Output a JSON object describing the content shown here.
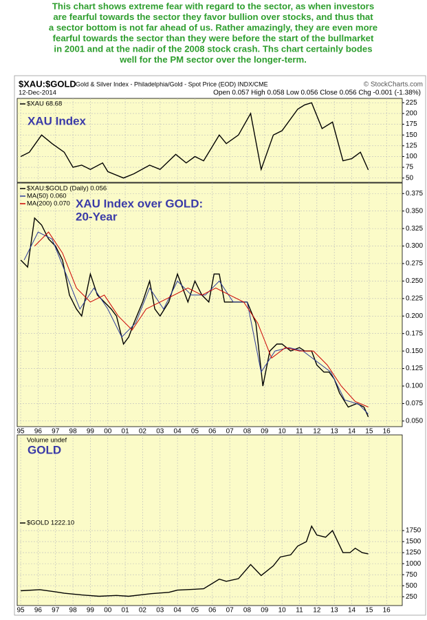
{
  "header": {
    "lines": [
      "This chart shows extreme fear with regard to the sector, as when investors",
      "are fearful towards the sector they favor bullion over stocks, and thus that",
      "a sector bottom is not far ahead of us. Rather amazingly, they are even more",
      "fearful towards the sector than they were before the start of the bullmarket",
      "in 2001 and at the nadir of the 2008 stock crash. Ths chart certainly bodes",
      "well for the PM sector over the longer-term."
    ]
  },
  "chart_header": {
    "symbol": "$XAU:$GOLD",
    "description": "Gold & Silver Index - Philadelphia/Gold - Spot Price (EOD) INDX/CME",
    "source": "© StockCharts.com",
    "date": "12-Dec-2014",
    "quote": "Open 0.057  High 0.058  Low 0.056  Close 0.056  Chg -0.001 (-1.38%)"
  },
  "x_axis": {
    "xlim": [
      1994.8,
      2016.9
    ],
    "xticks": [
      {
        "value": 1995,
        "label": "95"
      },
      {
        "value": 1996,
        "label": "96"
      },
      {
        "value": 1997,
        "label": "97"
      },
      {
        "value": 1998,
        "label": "98"
      },
      {
        "value": 1999,
        "label": "99"
      },
      {
        "value": 2000,
        "label": "00"
      },
      {
        "value": 2001,
        "label": "01"
      },
      {
        "value": 2002,
        "label": "02"
      },
      {
        "value": 2003,
        "label": "03"
      },
      {
        "value": 2004,
        "label": "04"
      },
      {
        "value": 2005,
        "label": "05"
      },
      {
        "value": 2006,
        "label": "06"
      },
      {
        "value": 2007,
        "label": "07"
      },
      {
        "value": 2008,
        "label": "08"
      },
      {
        "value": 2009,
        "label": "09"
      },
      {
        "value": 2010,
        "label": "10"
      },
      {
        "value": 2011,
        "label": "11"
      },
      {
        "value": 2012,
        "label": "12"
      },
      {
        "value": 2013,
        "label": "13"
      },
      {
        "value": 2014,
        "label": "14"
      },
      {
        "value": 2015,
        "label": "15"
      },
      {
        "value": 2016,
        "label": "16"
      }
    ]
  },
  "chart_data": [
    {
      "type": "line",
      "annotation": [
        "XAU Index"
      ],
      "grid": true,
      "ylim": [
        40,
        235
      ],
      "yticks": [
        50,
        75,
        100,
        125,
        150,
        175,
        200,
        225
      ],
      "series": [
        {
          "name": "$XAU 68.68",
          "color": "#000000",
          "x": [
            1995,
            1995.5,
            1996.2,
            1996.8,
            1997.5,
            1998.0,
            1998.5,
            1999.0,
            1999.7,
            2000.0,
            2000.9,
            2001.5,
            2002.4,
            2003.0,
            2003.9,
            2004.5,
            2005.0,
            2005.5,
            2006.4,
            2006.8,
            2007.5,
            2008.2,
            2008.8,
            2009.5,
            2010.0,
            2010.9,
            2011.3,
            2011.7,
            2012.3,
            2012.9,
            2013.5,
            2014.0,
            2014.5,
            2014.95
          ],
          "values": [
            100,
            110,
            150,
            130,
            110,
            75,
            80,
            70,
            85,
            65,
            50,
            60,
            80,
            70,
            105,
            85,
            100,
            90,
            150,
            130,
            150,
            200,
            70,
            150,
            160,
            210,
            220,
            225,
            165,
            180,
            90,
            95,
            110,
            69
          ]
        }
      ]
    },
    {
      "type": "line",
      "annotation": [
        "XAU Index over GOLD:",
        "20-Year"
      ],
      "grid": true,
      "ylim": [
        0.042,
        0.39
      ],
      "yticks": [
        {
          "value": 0.05,
          "label": "0.050"
        },
        0.075,
        {
          "value": 0.1,
          "label": "0.100"
        },
        0.125,
        {
          "value": 0.15,
          "label": "0.150"
        },
        0.175,
        {
          "value": 0.2,
          "label": "0.200"
        },
        0.225,
        {
          "value": 0.25,
          "label": "0.250"
        },
        0.275,
        {
          "value": 0.3,
          "label": "0.300"
        },
        0.325,
        {
          "value": 0.35,
          "label": "0.350"
        },
        0.375
      ],
      "series": [
        {
          "name": "$XAU:$GOLD (Daily) 0.056",
          "color": "#000000",
          "x": [
            1995,
            1995.4,
            1995.8,
            1996.2,
            1996.6,
            1997.0,
            1997.4,
            1997.8,
            1998.2,
            1998.5,
            1999.0,
            1999.4,
            1999.8,
            2000.2,
            2000.5,
            2000.9,
            2001.2,
            2001.5,
            2002.0,
            2002.4,
            2002.7,
            2003.0,
            2003.5,
            2004.0,
            2004.3,
            2004.6,
            2005.0,
            2005.4,
            2005.8,
            2006.1,
            2006.4,
            2006.7,
            2007.0,
            2007.6,
            2008.0,
            2008.5,
            2008.9,
            2009.3,
            2009.7,
            2010.0,
            2010.5,
            2011.0,
            2011.3,
            2011.7,
            2012.0,
            2012.4,
            2012.7,
            2013.0,
            2013.3,
            2013.8,
            2014.3,
            2014.7,
            2014.95
          ],
          "values": [
            0.28,
            0.27,
            0.34,
            0.33,
            0.31,
            0.3,
            0.28,
            0.23,
            0.21,
            0.2,
            0.26,
            0.23,
            0.22,
            0.21,
            0.2,
            0.16,
            0.17,
            0.19,
            0.22,
            0.25,
            0.21,
            0.2,
            0.22,
            0.26,
            0.24,
            0.22,
            0.25,
            0.23,
            0.22,
            0.26,
            0.26,
            0.22,
            0.22,
            0.22,
            0.22,
            0.19,
            0.1,
            0.15,
            0.16,
            0.16,
            0.15,
            0.155,
            0.15,
            0.15,
            0.13,
            0.12,
            0.12,
            0.11,
            0.09,
            0.07,
            0.075,
            0.07,
            0.056
          ]
        },
        {
          "name": "MA(50) 0.060",
          "color": "#2a3a9a",
          "x": [
            1995.2,
            1996.0,
            1996.8,
            1997.6,
            1998.4,
            1999.2,
            2000.0,
            2000.8,
            2001.6,
            2002.4,
            2003.2,
            2004.0,
            2004.8,
            2005.6,
            2006.4,
            2007.2,
            2008.0,
            2008.8,
            2009.6,
            2010.4,
            2011.2,
            2012.0,
            2012.8,
            2013.6,
            2014.4,
            2014.95
          ],
          "values": [
            0.28,
            0.32,
            0.31,
            0.26,
            0.21,
            0.24,
            0.21,
            0.17,
            0.19,
            0.24,
            0.21,
            0.25,
            0.23,
            0.23,
            0.25,
            0.22,
            0.22,
            0.12,
            0.15,
            0.155,
            0.15,
            0.135,
            0.12,
            0.08,
            0.074,
            0.06
          ]
        },
        {
          "name": "MA(200) 0.070",
          "color": "#cc0000",
          "x": [
            1995.8,
            1996.6,
            1997.4,
            1998.2,
            1999.0,
            1999.8,
            2000.6,
            2001.4,
            2002.2,
            2003.0,
            2003.8,
            2004.6,
            2005.4,
            2006.2,
            2007.0,
            2007.8,
            2008.6,
            2009.4,
            2010.2,
            2011.0,
            2011.8,
            2012.6,
            2013.4,
            2014.2,
            2014.95
          ],
          "values": [
            0.3,
            0.32,
            0.29,
            0.24,
            0.22,
            0.23,
            0.2,
            0.18,
            0.21,
            0.22,
            0.23,
            0.24,
            0.23,
            0.24,
            0.23,
            0.22,
            0.19,
            0.14,
            0.155,
            0.15,
            0.15,
            0.13,
            0.1,
            0.078,
            0.07
          ]
        }
      ]
    },
    {
      "type": "line",
      "label": "Volume undef",
      "annotation": [
        "GOLD"
      ],
      "grid": true,
      "ylim": [
        50,
        3920
      ],
      "yticks": [
        250,
        500,
        750,
        1000,
        1250,
        1500,
        1750
      ],
      "series": [
        {
          "name": "$GOLD 1222.10",
          "color": "#000000",
          "x": [
            1995,
            1996.1,
            1997.0,
            1997.5,
            1998.5,
            1999.5,
            2000.5,
            2001.2,
            2002.5,
            2003.5,
            2004.0,
            2005.0,
            2005.5,
            2006.4,
            2006.8,
            2007.5,
            2008.2,
            2008.8,
            2009.5,
            2009.9,
            2010.5,
            2010.9,
            2011.4,
            2011.7,
            2012.0,
            2012.5,
            2012.9,
            2013.5,
            2013.9,
            2014.2,
            2014.6,
            2014.95
          ],
          "values": [
            385,
            410,
            360,
            330,
            290,
            260,
            280,
            260,
            320,
            350,
            400,
            420,
            430,
            650,
            600,
            660,
            980,
            730,
            950,
            1150,
            1200,
            1400,
            1500,
            1850,
            1650,
            1600,
            1750,
            1250,
            1250,
            1350,
            1250,
            1222
          ]
        }
      ]
    }
  ]
}
